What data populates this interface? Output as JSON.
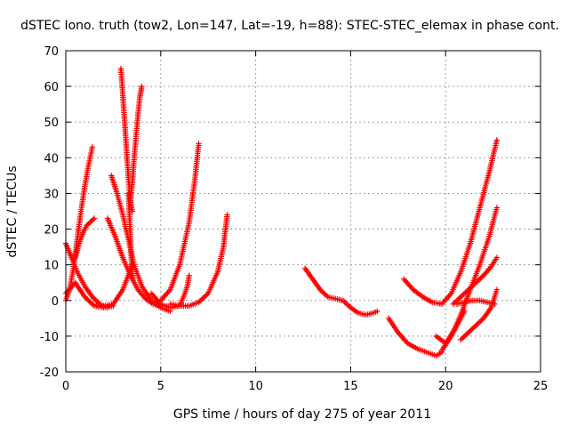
{
  "chart_data": {
    "type": "scatter",
    "title": "dSTEC Iono. truth (tow2, Lon=147, Lat=-19, h=88): STEC-STEC_elemax in phase cont.",
    "xlabel": "GPS time / hours of day 275 of year 2011",
    "ylabel": "dSTEC  / TECUs",
    "xlim": [
      0,
      25
    ],
    "ylim": [
      -20,
      70
    ],
    "xticks": [
      0,
      5,
      10,
      15,
      20,
      25
    ],
    "yticks": [
      -20,
      -10,
      0,
      10,
      20,
      30,
      40,
      50,
      60,
      70
    ],
    "grid": true,
    "color": "#ff0000",
    "marker": "plus",
    "series": [
      {
        "x": [
          0.0,
          0.2,
          0.4,
          0.6,
          0.8,
          1.0,
          1.2,
          1.4
        ],
        "y": [
          0.0,
          3.0,
          9.0,
          17.0,
          25.0,
          32.0,
          38.0,
          43.0
        ]
      },
      {
        "x": [
          0.0,
          0.3,
          0.6,
          1.0,
          1.4,
          1.8,
          2.2
        ],
        "y": [
          16.0,
          12.0,
          8.0,
          4.0,
          1.0,
          -1.0,
          -2.0
        ]
      },
      {
        "x": [
          0.5,
          0.7,
          0.9,
          1.1,
          1.3,
          1.5
        ],
        "y": [
          12.0,
          16.0,
          19.0,
          21.0,
          22.0,
          23.0
        ]
      },
      {
        "x": [
          0.0,
          0.5,
          1.0,
          1.5,
          2.0,
          2.5
        ],
        "y": [
          2.0,
          5.0,
          1.0,
          -1.5,
          -2.0,
          -1.5
        ]
      },
      {
        "x": [
          1.6,
          2.0,
          2.5,
          3.0,
          3.5
        ],
        "y": [
          -1.5,
          -1.5,
          -1.0,
          3.0,
          10.0
        ]
      },
      {
        "x": [
          2.2,
          2.6,
          3.0,
          3.4,
          3.8,
          4.2,
          4.6,
          5.0
        ],
        "y": [
          23.0,
          18.0,
          12.0,
          7.0,
          3.0,
          0.5,
          -1.0,
          -1.5
        ]
      },
      {
        "x": [
          2.4,
          2.7,
          3.0,
          3.3,
          3.6,
          4.0,
          4.5,
          5.0,
          5.5
        ],
        "y": [
          35.0,
          30.0,
          24.0,
          17.0,
          10.0,
          4.0,
          0.0,
          -2.0,
          -3.0
        ]
      },
      {
        "x": [
          2.9,
          3.0,
          3.1,
          3.2,
          3.3,
          3.4,
          3.5
        ],
        "y": [
          65.0,
          58.0,
          50.0,
          42.0,
          34.0,
          28.0,
          25.0
        ]
      },
      {
        "x": [
          3.4,
          3.5,
          3.6,
          3.7,
          3.8,
          3.9,
          4.0
        ],
        "y": [
          28.0,
          33.0,
          40.0,
          46.0,
          52.0,
          57.0,
          60.0
        ]
      },
      {
        "x": [
          3.3,
          3.35,
          3.4,
          3.45,
          3.5,
          3.55
        ],
        "y": [
          30.0,
          24.0,
          18.0,
          12.0,
          8.0,
          6.0
        ]
      },
      {
        "x": [
          4.5,
          5.0,
          5.5,
          6.0,
          6.2,
          6.4,
          6.5
        ],
        "y": [
          2.0,
          -1.0,
          -2.0,
          -1.5,
          1.0,
          4.0,
          7.0
        ]
      },
      {
        "x": [
          5.0,
          5.5,
          6.0,
          6.5,
          6.8,
          7.0
        ],
        "y": [
          0.0,
          3.0,
          10.0,
          22.0,
          34.0,
          44.0
        ]
      },
      {
        "x": [
          5.5,
          6.0,
          6.5,
          7.0,
          7.5,
          8.0,
          8.3,
          8.5
        ],
        "y": [
          -1.0,
          -1.5,
          -1.5,
          -0.5,
          2.0,
          8.0,
          15.0,
          24.0
        ]
      },
      {
        "x": [
          12.6,
          13.0,
          13.4,
          13.8,
          14.2,
          14.6,
          15.0,
          15.4,
          15.8,
          16.2,
          16.4
        ],
        "y": [
          9.0,
          6.0,
          3.0,
          1.0,
          0.5,
          0.0,
          -2.0,
          -3.5,
          -4.0,
          -3.5,
          -3.0
        ]
      },
      {
        "x": [
          17.0,
          17.5,
          18.0,
          18.5,
          19.0,
          19.5,
          19.8
        ],
        "y": [
          -5.0,
          -9.0,
          -12.0,
          -13.5,
          -14.5,
          -15.5,
          -14.5
        ]
      },
      {
        "x": [
          17.8,
          18.3,
          18.8,
          19.3,
          19.8,
          20.3,
          20.8,
          21.3,
          21.8,
          22.3,
          22.7
        ],
        "y": [
          6.0,
          3.0,
          1.0,
          -0.5,
          -1.0,
          2.0,
          8.0,
          16.0,
          26.0,
          36.0,
          45.0
        ]
      },
      {
        "x": [
          19.8,
          20.3,
          20.8,
          21.3,
          21.8,
          22.3,
          22.7
        ],
        "y": [
          -14.0,
          -10.0,
          -4.0,
          3.0,
          10.0,
          18.0,
          26.0
        ]
      },
      {
        "x": [
          19.5,
          20.0,
          20.5,
          21.0
        ],
        "y": [
          -10.0,
          -12.0,
          -8.0,
          -3.0
        ]
      },
      {
        "x": [
          20.4,
          20.8,
          21.2,
          21.6,
          22.0,
          22.4,
          22.7
        ],
        "y": [
          -1.0,
          1.0,
          3.0,
          5.0,
          7.0,
          9.5,
          12.0
        ]
      },
      {
        "x": [
          20.8,
          21.2,
          21.6,
          22.0,
          22.4,
          22.7
        ],
        "y": [
          -11.0,
          -9.0,
          -7.0,
          -5.0,
          -2.0,
          3.0
        ]
      },
      {
        "x": [
          20.6,
          21.0,
          21.4,
          21.8,
          22.2,
          22.6
        ],
        "y": [
          -1.0,
          -0.5,
          0.0,
          0.0,
          -0.5,
          -1.0
        ]
      }
    ]
  }
}
